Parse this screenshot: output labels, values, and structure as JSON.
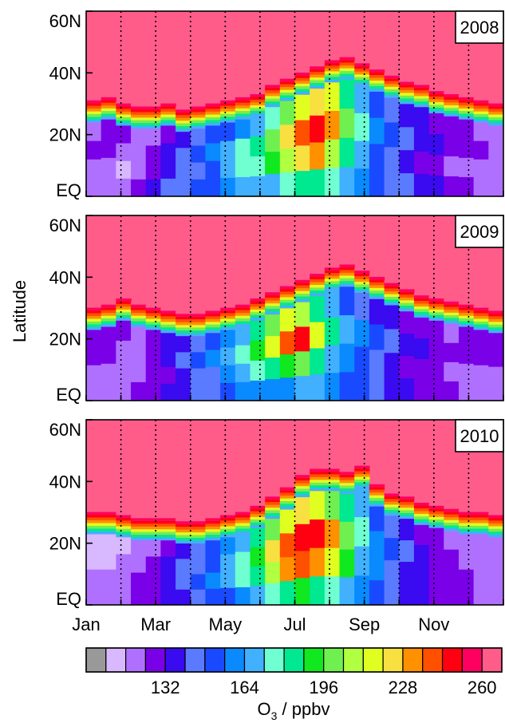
{
  "chart_data": {
    "type": "heatmap",
    "title": "",
    "ylabel": "Latitude",
    "colorbar_label_main": "O",
    "colorbar_label_sub": "3",
    "colorbar_label_rest": " / ppbv",
    "y_ticks": [
      "60N",
      "40N",
      "20N",
      "EQ"
    ],
    "y_tick_values": [
      60,
      40,
      20,
      0
    ],
    "ylim": [
      0,
      60
    ],
    "x_ticks": [
      "Jan",
      "Mar",
      "May",
      "Jul",
      "Sep",
      "Nov"
    ],
    "colorbar_ticks": [
      "132",
      "164",
      "196",
      "228",
      "260"
    ],
    "colorbar_tick_values": [
      132,
      164,
      196,
      228,
      260
    ],
    "colorbar_range": [
      100,
      268
    ],
    "colorbar_colors": [
      "#999999",
      "#d8b8ff",
      "#b070ff",
      "#7a00e8",
      "#3a0af0",
      "#5a7aff",
      "#1a4aff",
      "#0a8aff",
      "#40b0ff",
      "#70ffd0",
      "#00e890",
      "#10e820",
      "#70f050",
      "#b0ff40",
      "#e0ff20",
      "#f8e040",
      "#ff9000",
      "#ff5000",
      "#ff0010",
      "#ff0060",
      "#ff5c8a"
    ],
    "panels": [
      {
        "year": "2008",
        "boundary": [
          32,
          33,
          31,
          30,
          30,
          31,
          29,
          30,
          31,
          32,
          33,
          34,
          37,
          39,
          41,
          43,
          45,
          46,
          44,
          42,
          40,
          38,
          37,
          35,
          34,
          33,
          32,
          31
        ],
        "field": [
          [
            2,
            3,
            3,
            2,
            2,
            3,
            4,
            5,
            6,
            6,
            7,
            8,
            9,
            12,
            14,
            15,
            14,
            10,
            8,
            6,
            5,
            4,
            4,
            3,
            3,
            3,
            2,
            2
          ],
          [
            3,
            3,
            2,
            2,
            3,
            4,
            5,
            6,
            7,
            8,
            9,
            10,
            12,
            15,
            17,
            18,
            16,
            12,
            9,
            7,
            6,
            5,
            4,
            4,
            3,
            3,
            3,
            2
          ],
          [
            2,
            2,
            1,
            2,
            3,
            4,
            5,
            5,
            6,
            8,
            9,
            9,
            11,
            13,
            15,
            16,
            13,
            10,
            8,
            6,
            5,
            4,
            3,
            3,
            2,
            2,
            2,
            2
          ],
          [
            2,
            2,
            2,
            3,
            4,
            5,
            5,
            6,
            6,
            7,
            8,
            8,
            8,
            9,
            10,
            10,
            9,
            8,
            7,
            6,
            5,
            5,
            4,
            4,
            3,
            3,
            2,
            2
          ]
        ]
      },
      {
        "year": "2009",
        "boundary": [
          31,
          32,
          34,
          32,
          31,
          30,
          29,
          29,
          30,
          31,
          32,
          34,
          36,
          38,
          40,
          42,
          44,
          45,
          43,
          41,
          39,
          37,
          35,
          34,
          33,
          32,
          31,
          30
        ],
        "field": [
          [
            3,
            3,
            3,
            2,
            3,
            4,
            4,
            5,
            6,
            7,
            8,
            10,
            12,
            14,
            13,
            10,
            8,
            6,
            5,
            4,
            4,
            3,
            3,
            3,
            2,
            3,
            3,
            3
          ],
          [
            3,
            3,
            2,
            2,
            3,
            4,
            5,
            6,
            7,
            8,
            9,
            11,
            14,
            17,
            18,
            14,
            10,
            8,
            7,
            6,
            5,
            4,
            4,
            3,
            3,
            3,
            3,
            3
          ],
          [
            2,
            2,
            2,
            2,
            3,
            3,
            4,
            5,
            5,
            7,
            8,
            9,
            10,
            11,
            12,
            10,
            8,
            7,
            6,
            5,
            4,
            3,
            3,
            3,
            2,
            2,
            2,
            2
          ],
          [
            2,
            2,
            2,
            3,
            3,
            4,
            4,
            5,
            5,
            6,
            7,
            7,
            7,
            7,
            8,
            8,
            7,
            6,
            6,
            5,
            4,
            4,
            3,
            3,
            3,
            2,
            2,
            2
          ]
        ]
      },
      {
        "year": "2010",
        "boundary": [
          31,
          31,
          30,
          29,
          29,
          29,
          28,
          28,
          29,
          30,
          31,
          33,
          36,
          39,
          43,
          45,
          45,
          44,
          46,
          40,
          37,
          36,
          34,
          33,
          32,
          31,
          31,
          30
        ],
        "field": [
          [
            1,
            1,
            1,
            2,
            2,
            3,
            4,
            5,
            6,
            7,
            8,
            10,
            12,
            14,
            15,
            14,
            12,
            10,
            8,
            6,
            5,
            4,
            3,
            3,
            2,
            2,
            2,
            2
          ],
          [
            1,
            1,
            2,
            2,
            3,
            4,
            5,
            5,
            6,
            8,
            9,
            11,
            15,
            17,
            18,
            18,
            16,
            12,
            9,
            7,
            6,
            5,
            4,
            3,
            3,
            2,
            2,
            2
          ],
          [
            2,
            2,
            2,
            3,
            3,
            4,
            5,
            6,
            7,
            8,
            9,
            10,
            13,
            16,
            17,
            16,
            14,
            11,
            8,
            7,
            5,
            4,
            4,
            3,
            3,
            3,
            2,
            2
          ],
          [
            2,
            2,
            2,
            3,
            3,
            4,
            4,
            5,
            6,
            6,
            7,
            8,
            9,
            10,
            11,
            10,
            9,
            8,
            7,
            6,
            5,
            4,
            4,
            3,
            3,
            3,
            2,
            2
          ]
        ]
      }
    ]
  }
}
